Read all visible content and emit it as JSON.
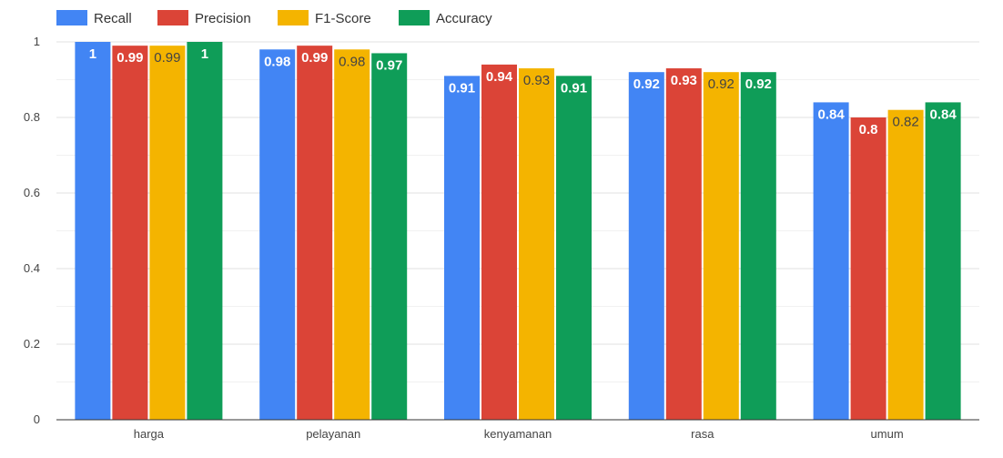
{
  "chart_data": {
    "type": "bar",
    "categories": [
      "harga",
      "pelayanan",
      "kenyamanan",
      "rasa",
      "umum"
    ],
    "series": [
      {
        "name": "Recall",
        "color": "#4285F4",
        "label_color": "#ffffff",
        "values": [
          1,
          0.98,
          0.91,
          0.92,
          0.84
        ]
      },
      {
        "name": "Precision",
        "color": "#DB4437",
        "label_color": "#ffffff",
        "values": [
          0.99,
          0.99,
          0.94,
          0.93,
          0.8
        ]
      },
      {
        "name": "F1-Score",
        "color": "#F4B400",
        "label_color": "#444444",
        "values": [
          0.99,
          0.98,
          0.93,
          0.92,
          0.82
        ]
      },
      {
        "name": "Accuracy",
        "color": "#0F9D58",
        "label_color": "#ffffff",
        "values": [
          1,
          0.97,
          0.91,
          0.92,
          0.84
        ]
      }
    ],
    "ylim": [
      0,
      1
    ],
    "yticks": [
      "0",
      "0.2",
      "0.4",
      "0.6",
      "0.8",
      "1"
    ],
    "ytick_values": [
      0,
      0.2,
      0.4,
      0.6,
      0.8,
      1
    ],
    "grid": true,
    "legend": "top-left",
    "title": "",
    "xlabel": "",
    "ylabel": ""
  }
}
